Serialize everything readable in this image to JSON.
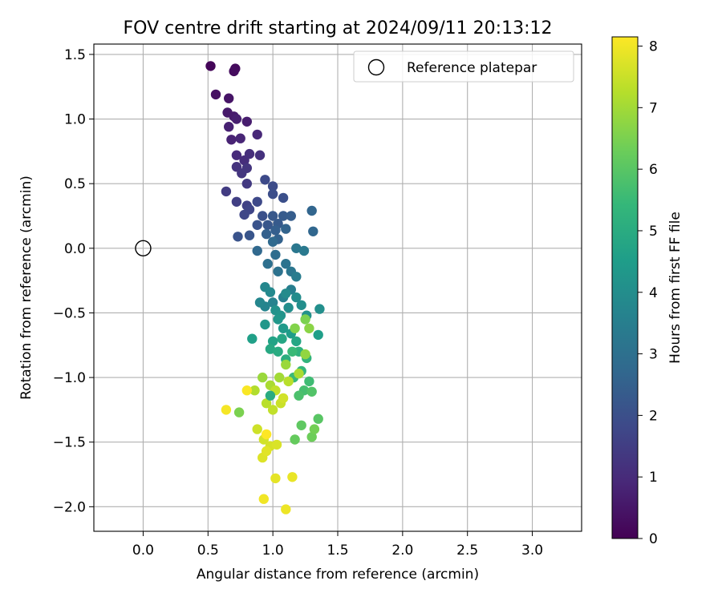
{
  "chart_data": {
    "type": "scatter",
    "title": "FOV centre drift starting at 2024/09/11 20:13:12",
    "xlabel": "Angular distance from reference (arcmin)",
    "ylabel": "Rotation from reference (arcmin)",
    "xlim": [
      -0.38,
      3.38
    ],
    "ylim": [
      -2.19,
      1.58
    ],
    "xticks": [
      "0.0",
      "0.5",
      "1.0",
      "1.5",
      "2.0",
      "2.5",
      "3.0"
    ],
    "xtick_values": [
      0,
      0.5,
      1.0,
      1.5,
      2.0,
      2.5,
      3.0
    ],
    "yticks": [
      "−2.0",
      "−1.5",
      "−1.0",
      "−0.5",
      "0.0",
      "0.5",
      "1.0",
      "1.5"
    ],
    "ytick_values": [
      -2.0,
      -1.5,
      -1.0,
      -0.5,
      0.0,
      0.5,
      1.0,
      1.5
    ],
    "grid": true,
    "legend": {
      "position": "top-right",
      "entries": [
        {
          "label": "Reference platepar",
          "marker": "open-circle"
        }
      ]
    },
    "reference_point": {
      "name": "Reference platepar",
      "x": 0.0,
      "y": 0.0
    },
    "colorbar": {
      "label": "Hours from first FF file",
      "min": 0,
      "max": 8.15,
      "ticks": [
        "0",
        "1",
        "2",
        "3",
        "4",
        "5",
        "6",
        "7",
        "8"
      ],
      "tick_values": [
        0,
        1,
        2,
        3,
        4,
        5,
        6,
        7,
        8
      ],
      "colormap": "viridis",
      "colormap_stops": [
        "#440154",
        "#482878",
        "#3e4989",
        "#31688e",
        "#26828e",
        "#1f9e89",
        "#35b779",
        "#6ece58",
        "#b5de2b",
        "#fde725"
      ]
    },
    "series": [
      {
        "points": [
          [
            0.52,
            1.41,
            0.1
          ],
          [
            0.71,
            1.39,
            0.2
          ],
          [
            0.7,
            1.37,
            0.25
          ],
          [
            0.56,
            1.19,
            0.35
          ],
          [
            0.66,
            1.16,
            0.45
          ],
          [
            0.65,
            1.05,
            0.55
          ],
          [
            0.7,
            1.02,
            0.6
          ],
          [
            0.8,
            0.98,
            0.65
          ],
          [
            0.72,
            1.0,
            0.7
          ],
          [
            0.66,
            0.94,
            0.75
          ],
          [
            0.68,
            0.84,
            0.8
          ],
          [
            0.75,
            0.85,
            0.85
          ],
          [
            0.88,
            0.88,
            0.9
          ],
          [
            0.72,
            0.72,
            1.0
          ],
          [
            0.78,
            0.68,
            1.05
          ],
          [
            0.82,
            0.73,
            1.1
          ],
          [
            0.9,
            0.72,
            1.15
          ],
          [
            0.72,
            0.63,
            1.2
          ],
          [
            0.8,
            0.62,
            1.25
          ],
          [
            0.76,
            0.58,
            1.3
          ],
          [
            0.8,
            0.5,
            1.4
          ],
          [
            0.64,
            0.44,
            1.45
          ],
          [
            0.72,
            0.36,
            1.55
          ],
          [
            0.8,
            0.33,
            1.6
          ],
          [
            0.82,
            0.3,
            1.7
          ],
          [
            0.78,
            0.26,
            1.75
          ],
          [
            0.88,
            0.36,
            1.8
          ],
          [
            0.94,
            0.53,
            1.85
          ],
          [
            1.0,
            0.48,
            1.9
          ],
          [
            1.0,
            0.42,
            1.95
          ],
          [
            1.08,
            0.39,
            2.0
          ],
          [
            0.92,
            0.25,
            2.05
          ],
          [
            0.88,
            0.18,
            2.1
          ],
          [
            0.73,
            0.09,
            2.1
          ],
          [
            0.82,
            0.1,
            2.15
          ],
          [
            0.96,
            0.18,
            2.2
          ],
          [
            1.0,
            0.25,
            2.25
          ],
          [
            1.04,
            0.19,
            2.3
          ],
          [
            1.08,
            0.25,
            2.35
          ],
          [
            1.14,
            0.25,
            2.4
          ],
          [
            1.02,
            0.14,
            2.45
          ],
          [
            0.95,
            0.11,
            2.5
          ],
          [
            1.04,
            0.07,
            2.55
          ],
          [
            1.1,
            0.15,
            2.6
          ],
          [
            1.3,
            0.29,
            2.65
          ],
          [
            1.31,
            0.13,
            2.7
          ],
          [
            0.88,
            -0.02,
            2.75
          ],
          [
            1.0,
            0.05,
            2.8
          ],
          [
            1.02,
            -0.05,
            2.9
          ],
          [
            0.96,
            -0.12,
            3.0
          ],
          [
            1.04,
            -0.18,
            3.05
          ],
          [
            1.1,
            -0.12,
            3.1
          ],
          [
            1.14,
            -0.18,
            3.2
          ],
          [
            1.18,
            0.0,
            3.25
          ],
          [
            1.24,
            -0.02,
            3.3
          ],
          [
            1.18,
            -0.22,
            3.4
          ],
          [
            1.14,
            -0.32,
            3.5
          ],
          [
            1.08,
            -0.38,
            3.6
          ],
          [
            1.0,
            -0.42,
            3.65
          ],
          [
            0.94,
            -0.45,
            3.7
          ],
          [
            0.9,
            -0.42,
            3.75
          ],
          [
            0.94,
            -0.3,
            3.8
          ],
          [
            0.98,
            -0.34,
            3.85
          ],
          [
            1.1,
            -0.35,
            3.9
          ],
          [
            1.18,
            -0.38,
            3.95
          ],
          [
            1.22,
            -0.44,
            4.0
          ],
          [
            1.36,
            -0.47,
            4.05
          ],
          [
            1.26,
            -0.52,
            4.1
          ],
          [
            1.02,
            -0.48,
            4.15
          ],
          [
            1.06,
            -0.52,
            4.2
          ],
          [
            0.94,
            -0.59,
            4.3
          ],
          [
            1.08,
            -0.62,
            4.4
          ],
          [
            1.14,
            -0.66,
            4.5
          ],
          [
            1.35,
            -0.67,
            4.55
          ],
          [
            0.84,
            -0.7,
            4.6
          ],
          [
            1.0,
            -0.72,
            4.7
          ],
          [
            1.18,
            -0.72,
            4.8
          ],
          [
            0.98,
            -0.78,
            4.9
          ],
          [
            1.04,
            -0.8,
            5.0
          ],
          [
            1.1,
            -0.86,
            5.1
          ],
          [
            1.2,
            -0.8,
            5.2
          ],
          [
            1.26,
            -0.85,
            5.3
          ],
          [
            1.22,
            -0.95,
            5.4
          ],
          [
            1.16,
            -1.0,
            5.5
          ],
          [
            1.28,
            -1.03,
            5.6
          ],
          [
            1.24,
            -1.1,
            5.7
          ],
          [
            1.2,
            -1.14,
            5.8
          ],
          [
            1.3,
            -1.11,
            5.9
          ],
          [
            1.35,
            -1.32,
            6.0
          ],
          [
            1.22,
            -1.37,
            6.1
          ],
          [
            1.17,
            -1.48,
            6.2
          ],
          [
            1.3,
            -1.46,
            6.3
          ],
          [
            1.32,
            -1.4,
            6.4
          ],
          [
            1.25,
            -0.55,
            6.5
          ],
          [
            1.17,
            -0.62,
            6.6
          ],
          [
            1.28,
            -0.62,
            6.7
          ],
          [
            1.25,
            -0.82,
            6.8
          ],
          [
            1.1,
            -0.9,
            6.9
          ],
          [
            1.05,
            -1.0,
            7.0
          ],
          [
            0.98,
            -1.06,
            7.1
          ],
          [
            0.86,
            -1.1,
            7.2
          ],
          [
            0.95,
            -1.2,
            7.3
          ],
          [
            1.0,
            -1.25,
            7.4
          ],
          [
            1.06,
            -1.2,
            7.5
          ],
          [
            0.88,
            -1.4,
            7.55
          ],
          [
            0.93,
            -1.48,
            7.6
          ],
          [
            0.98,
            -1.53,
            7.65
          ],
          [
            1.03,
            -1.52,
            7.7
          ],
          [
            0.92,
            -1.62,
            7.75
          ],
          [
            0.95,
            -1.57,
            7.8
          ],
          [
            1.02,
            -1.78,
            7.85
          ],
          [
            1.15,
            -1.77,
            7.9
          ],
          [
            1.1,
            -2.02,
            7.95
          ],
          [
            0.93,
            -1.94,
            8.0
          ],
          [
            0.64,
            -1.25,
            8.05
          ],
          [
            0.8,
            -1.1,
            8.1
          ],
          [
            0.95,
            -1.44,
            8.15
          ],
          [
            1.12,
            -1.03,
            7.3
          ],
          [
            0.92,
            -1.0,
            6.9
          ],
          [
            1.2,
            -0.97,
            7.1
          ],
          [
            1.02,
            -1.1,
            7.4
          ],
          [
            1.08,
            -1.16,
            7.6
          ],
          [
            0.74,
            -1.27,
            6.5
          ],
          [
            0.98,
            -1.14,
            5.0
          ],
          [
            1.04,
            -0.55,
            4.3
          ],
          [
            1.12,
            -0.46,
            4.0
          ],
          [
            1.07,
            -0.7,
            4.8
          ],
          [
            1.15,
            -0.8,
            5.5
          ]
        ]
      }
    ]
  }
}
